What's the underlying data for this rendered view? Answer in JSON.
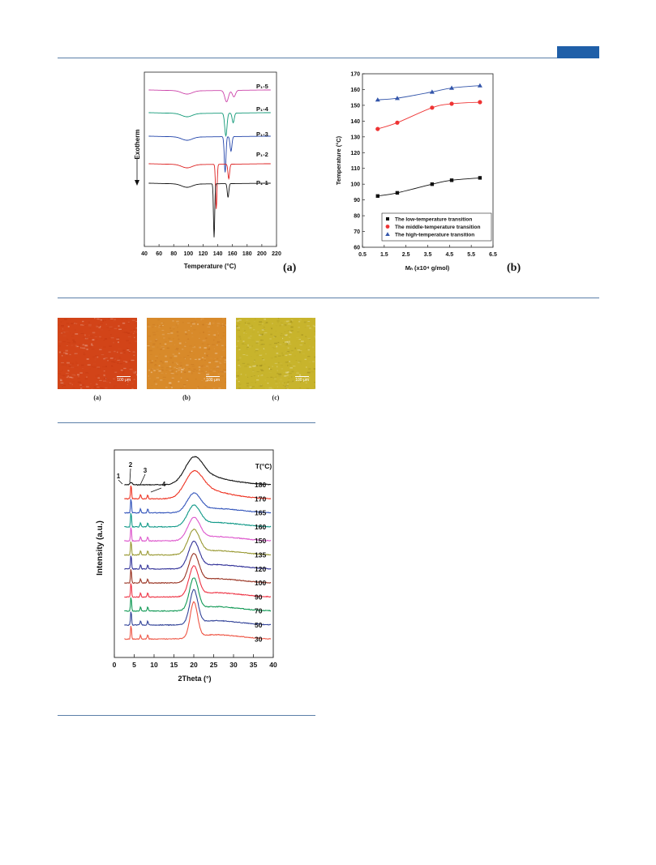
{
  "dsc": {
    "ylabel": "Exotherm",
    "xlabel": "Temperature (°C)",
    "panel_label": "(a)",
    "xticks": [
      40,
      60,
      80,
      100,
      120,
      140,
      160,
      180,
      200,
      220
    ],
    "xlim": [
      40,
      220
    ],
    "curves": [
      {
        "label": "P₁-5",
        "color": "#cc44aa"
      },
      {
        "label": "P₁-4",
        "color": "#119977"
      },
      {
        "label": "P₁-3",
        "color": "#2244aa"
      },
      {
        "label": "P₁-2",
        "color": "#dd2222"
      },
      {
        "label": "P₁-1",
        "color": "#111111"
      }
    ]
  },
  "transitions": {
    "ylabel": "Temperature (°C)",
    "xlabel": "Mₙ (x10⁴ g/mol)",
    "panel_label": "(b)",
    "xticks": [
      "0.5",
      "1.5",
      "2.5",
      "3.5",
      "4.5",
      "5.5",
      "6.5"
    ],
    "yticks": [
      "60",
      "70",
      "80",
      "90",
      "100",
      "110",
      "120",
      "130",
      "140",
      "150",
      "160",
      "170"
    ]
  },
  "chart_data": {
    "type": "line",
    "xlim": [
      0.5,
      6.5
    ],
    "ylim": [
      60,
      170
    ],
    "x": [
      1.2,
      2.1,
      3.7,
      4.6,
      5.9
    ],
    "series": [
      {
        "name": "The low-temperature transition",
        "values": [
          92.5,
          94.5,
          100,
          102.5,
          104
        ],
        "color": "#111111",
        "marker": "square"
      },
      {
        "name": "The middle-temperature transition",
        "values": [
          135,
          139,
          148.5,
          151,
          152
        ],
        "color": "#ee3333",
        "marker": "circle"
      },
      {
        "name": "The high-temperature transition",
        "values": [
          153.5,
          154.5,
          158.5,
          161,
          162.5
        ],
        "color": "#3355aa",
        "marker": "triangle"
      }
    ],
    "legend_position": "bottom-right"
  },
  "micrographs": [
    {
      "caption": "(a)",
      "scale": "100 μm",
      "base": "#d24418",
      "accent": "#b8300c"
    },
    {
      "caption": "(b)",
      "scale": "100 μm",
      "base": "#d88a2a",
      "accent": "#b8651a"
    },
    {
      "caption": "(c)",
      "scale": "100 μm",
      "base": "#c8b42c",
      "accent": "#7a6a14"
    }
  ],
  "xrd": {
    "ylabel": "Intensity (a.u.)",
    "xlabel": "2Theta (°)",
    "legend_title": "T(°C)",
    "xticks": [
      "0",
      "5",
      "10",
      "15",
      "20",
      "25",
      "30",
      "35",
      "40"
    ],
    "peak_labels": [
      "1",
      "2",
      "3",
      "4"
    ],
    "curves": [
      {
        "temp": "180",
        "color": "#111111"
      },
      {
        "temp": "170",
        "color": "#ee3322"
      },
      {
        "temp": "165",
        "color": "#3355bb"
      },
      {
        "temp": "160",
        "color": "#119988"
      },
      {
        "temp": "150",
        "color": "#dd55cc"
      },
      {
        "temp": "135",
        "color": "#999933"
      },
      {
        "temp": "120",
        "color": "#333399"
      },
      {
        "temp": "100",
        "color": "#993322"
      },
      {
        "temp": "90",
        "color": "#ee3344"
      },
      {
        "temp": "70",
        "color": "#119955"
      },
      {
        "temp": "50",
        "color": "#334499"
      },
      {
        "temp": "30",
        "color": "#ee5544"
      }
    ]
  }
}
